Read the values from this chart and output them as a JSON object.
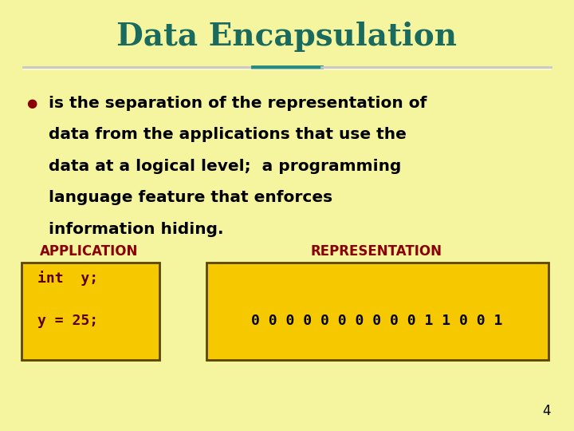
{
  "background_color": "#f5f5a0",
  "title": "Data Encapsulation",
  "title_color": "#1a6a5e",
  "title_fontsize": 28,
  "bullet_color": "#8b0000",
  "bullet_text_color": "#000000",
  "bullet_line1": "is the separation of the representation of",
  "bullet_line2": "data from the applications that use the",
  "bullet_line3": "data at a logical level;  a programming",
  "bullet_line4": "language feature that enforces",
  "bullet_line5": "information hiding.",
  "bullet_fontsize": 14.5,
  "app_label": "APPLICATION",
  "rep_label": "REPRESENTATION",
  "label_color": "#8b0000",
  "label_fontsize": 12,
  "box_color": "#f5c800",
  "box_border_color": "#5a4500",
  "app_code_line1": "int  y;",
  "app_code_line2": "y = 25;",
  "code_color": "#5a0000",
  "code_fontsize": 13,
  "rep_binary": "0 0 0 0 0 0 0 0 0 0 1 1 0 0 1",
  "rep_binary_color": "#000000",
  "rep_binary_fontsize": 13,
  "page_number": "4",
  "page_number_color": "#000000",
  "page_number_fontsize": 12
}
